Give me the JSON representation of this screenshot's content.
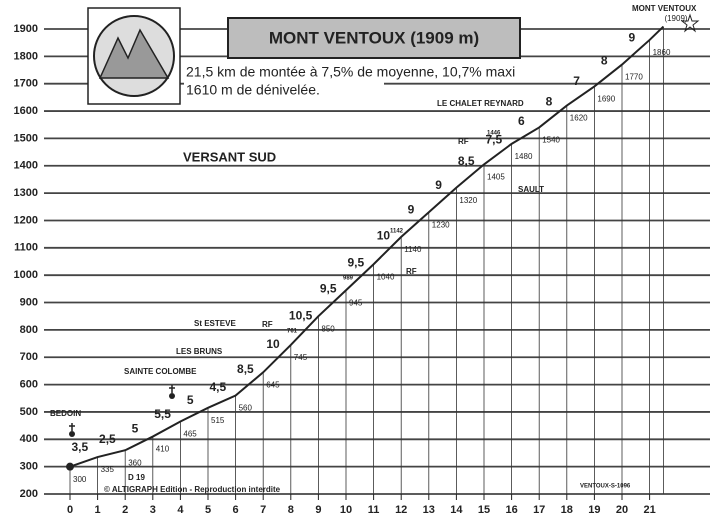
{
  "chart_data": {
    "type": "line",
    "title": "MONT VENTOUX (1909 m)",
    "subtitle": [
      "21,5 km de montée à 7,5% de moyenne, 10,7% maxi",
      "1610 m de dénivelée."
    ],
    "x": [
      0,
      1,
      2,
      3,
      4,
      5,
      6,
      7,
      8,
      9,
      10,
      11,
      12,
      13,
      14,
      15,
      16,
      17,
      18,
      19,
      20,
      21,
      21.5
    ],
    "series": [
      {
        "color": "#222222",
        "values": [
          300,
          335,
          360,
          410,
          465,
          515,
          560,
          645,
          745,
          850,
          945,
          1040,
          1140,
          1230,
          1320,
          1405,
          1480,
          1540,
          1620,
          1690,
          1770,
          1860,
          1909
        ],
        "value_labels": [
          "300",
          "335",
          "360",
          "410",
          "465",
          "515",
          "560",
          "645",
          "745",
          "850",
          "945",
          "1040",
          "1140",
          "1230",
          "1320",
          "1405",
          "1480",
          "1540",
          "1620",
          "1690",
          "1770",
          "1860",
          "(1909)"
        ]
      }
    ],
    "gradients": [
      "3,5",
      "2,5",
      "5",
      "5,5",
      "5",
      "4,5",
      "8,5",
      "10",
      "10,5",
      "9,5",
      "9,5",
      "10",
      "9",
      "9",
      "8,5",
      "7,5",
      "6",
      "8",
      "7",
      "8",
      "9"
    ],
    "xlim": [
      0,
      21
    ],
    "xticks": [
      0,
      1,
      2,
      3,
      4,
      5,
      6,
      7,
      8,
      9,
      10,
      11,
      12,
      13,
      14,
      15,
      16,
      17,
      18,
      19,
      20,
      21
    ],
    "ylim": [
      200,
      1900
    ],
    "yticks": [
      200,
      300,
      400,
      500,
      600,
      700,
      800,
      900,
      1000,
      1100,
      1200,
      1300,
      1400,
      1500,
      1600,
      1700,
      1800,
      1900
    ],
    "grid": true,
    "annotations": [
      "VERSANT SUD",
      "BEDOIN",
      "SAINTE COLOMBE",
      "LES BRUNS",
      "St ESTEVE",
      "RF",
      "761",
      "989",
      "RF",
      "1142",
      "1446",
      "RF",
      "LE CHALET REYNARD",
      "SAULT",
      "D 19",
      "MONT VENTOUX",
      "VENTOUX-S-1096",
      "© ALTIGRAPH Edition - Reproduction interdite"
    ]
  }
}
